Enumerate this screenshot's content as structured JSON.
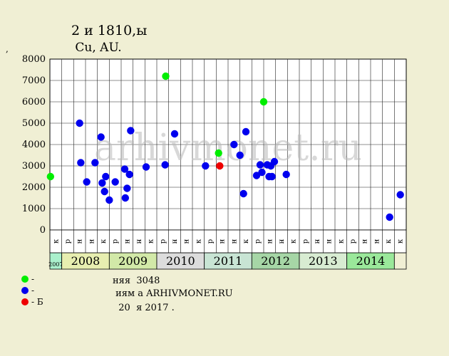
{
  "title_line1": "2 ￼￼￼￼и 1810,￼￼ы ￼",
  "title_line2": "￼￼￼ Cu,￼￼￼ AU.",
  "y_unit": "￼￼, ￼￼",
  "watermark": "arhivmonet.ru",
  "legend": [
    {
      "label": "- ￼￼￼",
      "color": "#00ee00"
    },
    {
      "label": "- ￼￼￼",
      "color": "#0000ee"
    },
    {
      "label": "- ￼￼￼￼￼Б",
      "color": "#ee0000"
    }
  ],
  "info": [
    "￼￼няя ￼￼ 3048 ￼￼",
    "￼ ￼￼￼￼иям ￼￼а ARHIVMONET.RU",
    "￼￼￼ ￼ 20 ￼ ￼я 2017 ￼￼."
  ],
  "chart_data": {
    "type": "scatter",
    "ylim": [
      0,
      8000
    ],
    "yticks": [
      0,
      1000,
      2000,
      3000,
      4000,
      5000,
      6000,
      7000,
      8000
    ],
    "grid": true,
    "slot_count": 30,
    "slot_labels": [
      "￼к",
      "￼р",
      "￼н",
      "￼н",
      "￼к",
      "￼р",
      "￼н",
      "￼н",
      "￼к",
      "￼р",
      "￼н",
      "￼н",
      "￼к",
      "￼р",
      "￼н",
      "￼н",
      "￼к",
      "￼р",
      "￼н",
      "￼н",
      "￼к",
      "￼р",
      "￼н",
      "￼н",
      "￼к",
      "￼р",
      "￼н",
      "￼н",
      "￼к",
      "￼к"
    ],
    "periods": [
      {
        "label": "2007",
        "start": 0,
        "end": 1,
        "color": "#aaf0cc"
      },
      {
        "label": "2008",
        "start": 1,
        "end": 5,
        "color": "#e7eeb0"
      },
      {
        "label": "2009",
        "start": 5,
        "end": 9,
        "color": "#d2e9a8"
      },
      {
        "label": "2010",
        "start": 9,
        "end": 13,
        "color": "#dcdcdc"
      },
      {
        "label": "2011",
        "start": 13,
        "end": 17,
        "color": "#c8e4d4"
      },
      {
        "label": "2012",
        "start": 17,
        "end": 21,
        "color": "#a6d6a6"
      },
      {
        "label": "2013",
        "start": 21,
        "end": 25,
        "color": "#d8ecd2"
      },
      {
        "label": "2014",
        "start": 25,
        "end": 29,
        "color": "#9ae89a"
      },
      {
        "label": "",
        "start": 29,
        "end": 30,
        "color": "#f0efd4"
      }
    ],
    "series": [
      {
        "type": "unc",
        "color": "#00ee00",
        "points": [
          {
            "x": 0.05,
            "y": 2500
          },
          {
            "x": 9.75,
            "y": 7200
          },
          {
            "x": 14.2,
            "y": 3600
          },
          {
            "x": 18.0,
            "y": 6000
          }
        ]
      },
      {
        "type": "circ",
        "color": "#0000ee",
        "points": [
          {
            "x": 2.5,
            "y": 5000
          },
          {
            "x": 2.6,
            "y": 3150
          },
          {
            "x": 3.1,
            "y": 2250
          },
          {
            "x": 3.8,
            "y": 3150
          },
          {
            "x": 4.3,
            "y": 4350
          },
          {
            "x": 4.4,
            "y": 2200
          },
          {
            "x": 4.6,
            "y": 1800
          },
          {
            "x": 4.7,
            "y": 2500
          },
          {
            "x": 5.0,
            "y": 1400
          },
          {
            "x": 5.5,
            "y": 2250
          },
          {
            "x": 6.3,
            "y": 2850
          },
          {
            "x": 6.35,
            "y": 1500
          },
          {
            "x": 6.5,
            "y": 1950
          },
          {
            "x": 6.7,
            "y": 2600
          },
          {
            "x": 6.8,
            "y": 4650
          },
          {
            "x": 8.1,
            "y": 2950
          },
          {
            "x": 9.7,
            "y": 3050
          },
          {
            "x": 10.5,
            "y": 4500
          },
          {
            "x": 13.1,
            "y": 3000
          },
          {
            "x": 15.5,
            "y": 4000
          },
          {
            "x": 16.0,
            "y": 3500
          },
          {
            "x": 16.3,
            "y": 1700
          },
          {
            "x": 16.5,
            "y": 4600
          },
          {
            "x": 17.4,
            "y": 2550
          },
          {
            "x": 17.7,
            "y": 3050
          },
          {
            "x": 17.85,
            "y": 2700
          },
          {
            "x": 18.3,
            "y": 3050
          },
          {
            "x": 18.45,
            "y": 2500
          },
          {
            "x": 18.6,
            "y": 3000
          },
          {
            "x": 18.7,
            "y": 2500
          },
          {
            "x": 18.9,
            "y": 3200
          },
          {
            "x": 19.9,
            "y": 2600
          },
          {
            "x": 28.6,
            "y": 600
          },
          {
            "x": 29.5,
            "y": 1650
          }
        ]
      },
      {
        "type": "proof",
        "color": "#ee0000",
        "points": [
          {
            "x": 14.3,
            "y": 3000
          }
        ]
      }
    ]
  }
}
